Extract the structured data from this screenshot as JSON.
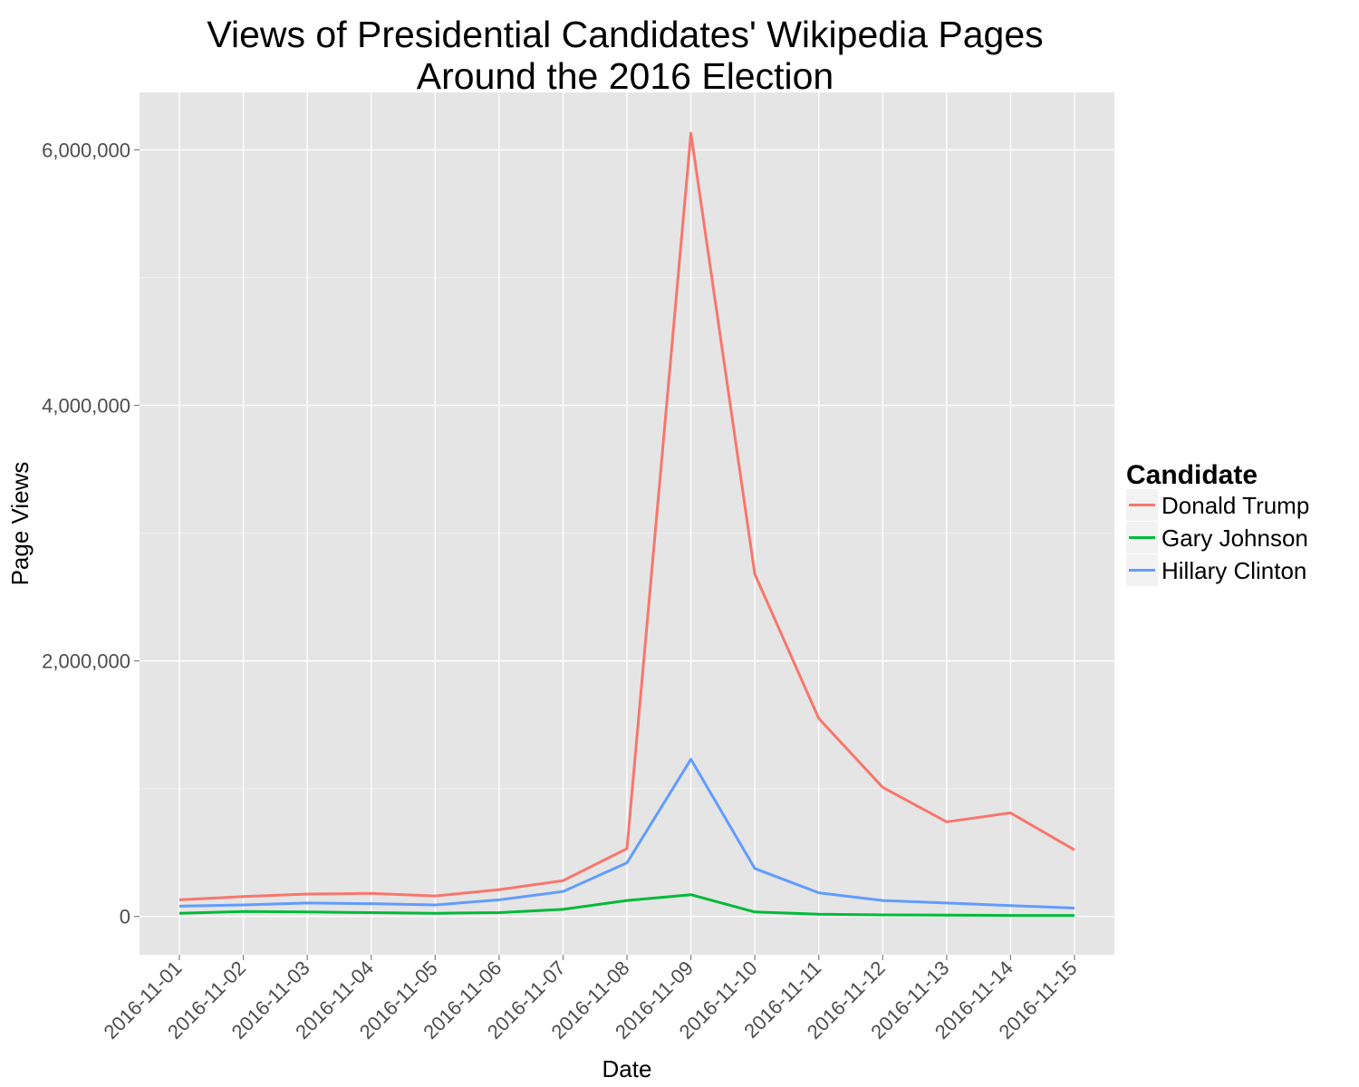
{
  "chart_data": {
    "type": "line",
    "title_lines": [
      "Views of Presidential Candidates' Wikipedia Pages",
      "Around the 2016 Election"
    ],
    "xlabel": "Date",
    "ylabel": "Page Views",
    "categories": [
      "2016-11-01",
      "2016-11-02",
      "2016-11-03",
      "2016-11-04",
      "2016-11-05",
      "2016-11-06",
      "2016-11-07",
      "2016-11-08",
      "2016-11-09",
      "2016-11-10",
      "2016-11-11",
      "2016-11-12",
      "2016-11-13",
      "2016-11-14",
      "2016-11-15"
    ],
    "y_ticks": [
      0,
      2000000,
      4000000,
      6000000
    ],
    "y_tick_labels": [
      "0",
      "2,000,000",
      "4,000,000",
      "6,000,000"
    ],
    "ylim": [
      -300000,
      6450000
    ],
    "grid": true,
    "legend_position": "right",
    "legend_title": "Candidate",
    "series": [
      {
        "name": "Donald Trump",
        "color": "#F8766D",
        "values": [
          130000,
          155000,
          175000,
          180000,
          160000,
          210000,
          280000,
          530000,
          6130000,
          2680000,
          1550000,
          1010000,
          740000,
          810000,
          520000
        ]
      },
      {
        "name": "Gary Johnson",
        "color": "#00BA38",
        "values": [
          25000,
          38000,
          35000,
          30000,
          25000,
          30000,
          55000,
          125000,
          170000,
          35000,
          18000,
          12000,
          10000,
          8000,
          8000
        ]
      },
      {
        "name": "Hillary Clinton",
        "color": "#619CFF",
        "values": [
          80000,
          90000,
          105000,
          100000,
          90000,
          130000,
          195000,
          420000,
          1230000,
          375000,
          185000,
          125000,
          105000,
          85000,
          65000
        ]
      }
    ]
  }
}
